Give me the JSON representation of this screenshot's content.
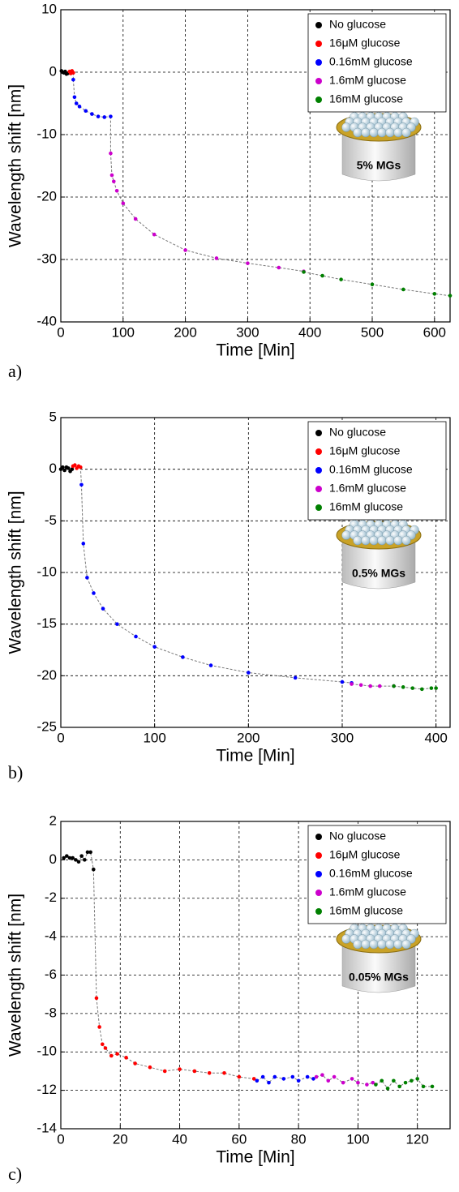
{
  "chart_data": [
    {
      "type": "scatter",
      "panel_label": "a)",
      "x_label": "Time [Min]",
      "y_label": "Wavelength shift [nm]",
      "annotation": "5% MGs",
      "xlim": [
        0,
        625
      ],
      "ylim": [
        -40,
        10
      ],
      "xticks": [
        0,
        100,
        200,
        300,
        400,
        500,
        600
      ],
      "yticks": [
        -40,
        -30,
        -20,
        -10,
        0,
        10
      ],
      "grid": true,
      "legend": "upper right",
      "series": [
        {
          "name": "No glucose",
          "color": "#000000",
          "x": [
            1,
            3,
            5,
            7,
            9,
            11,
            13
          ],
          "values": [
            0.2,
            0,
            -0.1,
            0.1,
            -0.3,
            -0.2,
            -0.1
          ]
        },
        {
          "name": "16μM glucose",
          "color": "#ff0000",
          "x": [
            14,
            16,
            18,
            20
          ],
          "values": [
            0.1,
            -0.2,
            0.2,
            -0.1
          ]
        },
        {
          "name": "0.16mM glucose",
          "color": "#0000ff",
          "x": [
            20,
            22,
            25,
            30,
            40,
            50,
            60,
            70,
            80
          ],
          "values": [
            -1.2,
            -4,
            -5,
            -5.5,
            -6.2,
            -6.7,
            -7.1,
            -7.2,
            -7.1
          ]
        },
        {
          "name": "1.6mM glucose",
          "color": "#cc00cc",
          "x": [
            80,
            82,
            85,
            90,
            100,
            120,
            150,
            200,
            250,
            300,
            350,
            390
          ],
          "values": [
            -13,
            -16.5,
            -17.5,
            -19,
            -21,
            -23.5,
            -26,
            -28.5,
            -29.8,
            -30.6,
            -31.3,
            -31.9
          ]
        },
        {
          "name": "16mM glucose",
          "color": "#008000",
          "x": [
            390,
            420,
            450,
            500,
            550,
            600,
            625
          ],
          "values": [
            -32,
            -32.6,
            -33.2,
            -34,
            -34.8,
            -35.5,
            -35.8
          ]
        }
      ]
    },
    {
      "type": "scatter",
      "panel_label": "b)",
      "x_label": "Time [Min]",
      "y_label": "Wavelength shift [nm]",
      "annotation": "0.5% MGs",
      "xlim": [
        0,
        415
      ],
      "ylim": [
        -25,
        5
      ],
      "xticks": [
        0,
        100,
        200,
        300,
        400
      ],
      "yticks": [
        -25,
        -20,
        -15,
        -10,
        -5,
        0,
        5
      ],
      "grid": true,
      "legend": "upper right",
      "series": [
        {
          "name": "No glucose",
          "color": "#000000",
          "x": [
            0,
            2,
            4,
            6,
            8,
            10,
            12
          ],
          "values": [
            0,
            0.2,
            -0.1,
            0.2,
            0.1,
            -0.2,
            0
          ]
        },
        {
          "name": "16μM glucose",
          "color": "#ff0000",
          "x": [
            13,
            15,
            17,
            19,
            21
          ],
          "values": [
            0.3,
            0.4,
            0.1,
            0.3,
            0.2
          ]
        },
        {
          "name": "0.16mM glucose",
          "color": "#0000ff",
          "x": [
            22,
            24,
            28,
            35,
            45,
            60,
            80,
            100,
            130,
            160,
            200,
            250,
            300,
            310
          ],
          "values": [
            -1.5,
            -7.2,
            -10.5,
            -12,
            -13.5,
            -15,
            -16.2,
            -17.2,
            -18.2,
            -19,
            -19.7,
            -20.2,
            -20.6,
            -20.7
          ]
        },
        {
          "name": "1.6mM glucose",
          "color": "#cc00cc",
          "x": [
            310,
            320,
            330,
            340,
            355
          ],
          "values": [
            -20.8,
            -20.9,
            -21,
            -21,
            -21
          ]
        },
        {
          "name": "16mM glucose",
          "color": "#008000",
          "x": [
            355,
            365,
            375,
            385,
            395,
            400
          ],
          "values": [
            -21,
            -21.1,
            -21.2,
            -21.3,
            -21.2,
            -21.2
          ]
        }
      ]
    },
    {
      "type": "scatter",
      "panel_label": "c)",
      "x_label": "Time [Min]",
      "y_label": "Wavelength shift [nm]",
      "annotation": "0.05% MGs",
      "xlim": [
        0,
        131
      ],
      "ylim": [
        -14,
        2
      ],
      "xticks": [
        0,
        20,
        40,
        60,
        80,
        100,
        120
      ],
      "yticks": [
        -14,
        -12,
        -10,
        -8,
        -6,
        -4,
        -2,
        0,
        2
      ],
      "grid": true,
      "legend": "upper right",
      "series": [
        {
          "name": "No glucose",
          "color": "#000000",
          "x": [
            1,
            2,
            3,
            4,
            5,
            6,
            7,
            8,
            9,
            10,
            11
          ],
          "values": [
            0.1,
            0.2,
            0.1,
            0.1,
            0,
            -0.1,
            0.2,
            0,
            0.4,
            0.4,
            -0.5
          ]
        },
        {
          "name": "16μM glucose",
          "color": "#ff0000",
          "x": [
            12,
            13,
            14,
            15,
            17,
            19,
            22,
            25,
            30,
            35,
            40,
            45,
            50,
            55,
            60,
            65
          ],
          "values": [
            -7.2,
            -8.7,
            -9.6,
            -9.8,
            -10.2,
            -10.1,
            -10.3,
            -10.6,
            -10.8,
            -11,
            -10.9,
            -11,
            -11.1,
            -11.1,
            -11.3,
            -11.4
          ]
        },
        {
          "name": "0.16mM glucose",
          "color": "#0000ff",
          "x": [
            66,
            68,
            70,
            72,
            75,
            78,
            80,
            83,
            85
          ],
          "values": [
            -11.5,
            -11.3,
            -11.6,
            -11.3,
            -11.4,
            -11.3,
            -11.5,
            -11.3,
            -11.4
          ]
        },
        {
          "name": "1.6mM glucose",
          "color": "#cc00cc",
          "x": [
            86,
            88,
            90,
            92,
            95,
            98,
            100,
            103,
            105
          ],
          "values": [
            -11.3,
            -11.2,
            -11.5,
            -11.3,
            -11.6,
            -11.4,
            -11.6,
            -11.7,
            -11.6
          ]
        },
        {
          "name": "16mM glucose",
          "color": "#008000",
          "x": [
            106,
            108,
            110,
            112,
            114,
            116,
            118,
            120,
            122,
            125
          ],
          "values": [
            -11.7,
            -11.5,
            -11.9,
            -11.5,
            -11.8,
            -11.6,
            -11.5,
            -11.4,
            -11.8,
            -11.8
          ]
        }
      ]
    }
  ]
}
